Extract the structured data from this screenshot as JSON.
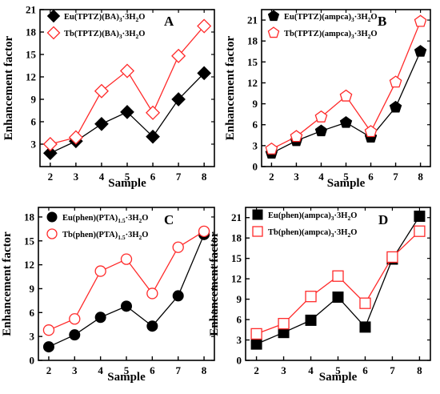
{
  "figure": {
    "shared_xlabel": "Sample",
    "shared_ylabel": "Enhancement factor"
  },
  "chart_data": [
    {
      "panel": "A",
      "type": "line",
      "xlabel": "Sample",
      "ylabel": "Enhancement factor",
      "x": [
        2,
        3,
        4,
        5,
        6,
        7,
        8
      ],
      "xlim": [
        1.6,
        8.4
      ],
      "ylim": [
        0,
        21
      ],
      "yticks": [
        3,
        6,
        9,
        12,
        15,
        18,
        21
      ],
      "legend_position": "top-left",
      "series": [
        {
          "legend_main": "Eu(TPTZ)(BA)",
          "legend_rest": [
            {
              "t": "3",
              "sub": true
            },
            {
              "t": "·3H",
              "sub": false
            },
            {
              "t": "2",
              "sub": true
            },
            {
              "t": "O",
              "sub": false
            }
          ],
          "color": "#000000",
          "marker": "diamond",
          "filled": true,
          "values": [
            1.8,
            3.4,
            5.7,
            7.3,
            4.0,
            9.0,
            12.5
          ]
        },
        {
          "legend_main": "Tb(TPTZ)(BA)",
          "legend_rest": [
            {
              "t": "3",
              "sub": true
            },
            {
              "t": "·3H",
              "sub": false
            },
            {
              "t": "2",
              "sub": true
            },
            {
              "t": "O",
              "sub": false
            }
          ],
          "color": "#ff2a2a",
          "marker": "diamond",
          "filled": false,
          "values": [
            3.0,
            3.9,
            10.1,
            12.8,
            7.2,
            14.8,
            18.8
          ]
        }
      ]
    },
    {
      "panel": "B",
      "type": "line",
      "xlabel": "Sample",
      "ylabel": "Enhancement factor",
      "x": [
        2,
        3,
        4,
        5,
        6,
        7,
        8
      ],
      "xlim": [
        1.6,
        8.4
      ],
      "ylim": [
        0,
        22.5
      ],
      "yticks": [
        0,
        3,
        6,
        9,
        12,
        15,
        18,
        21
      ],
      "legend_position": "top-left",
      "series": [
        {
          "legend_main": "Eu(TPTZ)(ampca)",
          "legend_rest": [
            {
              "t": "3",
              "sub": true
            },
            {
              "t": "·3H",
              "sub": false
            },
            {
              "t": "2",
              "sub": true
            },
            {
              "t": "O",
              "sub": false
            }
          ],
          "color": "#000000",
          "marker": "pentagon",
          "filled": true,
          "values": [
            1.9,
            3.7,
            5.1,
            6.3,
            4.2,
            8.5,
            16.5
          ]
        },
        {
          "legend_main": "Tb(TPTZ)(ampca)",
          "legend_rest": [
            {
              "t": "3",
              "sub": true
            },
            {
              "t": "·3H",
              "sub": false
            },
            {
              "t": "2",
              "sub": true
            },
            {
              "t": "O",
              "sub": false
            }
          ],
          "color": "#ff2a2a",
          "marker": "pentagon",
          "filled": false,
          "values": [
            2.5,
            4.3,
            7.1,
            10.1,
            5.0,
            12.1,
            20.8
          ]
        }
      ]
    },
    {
      "panel": "C",
      "type": "line",
      "xlabel": "Sample",
      "ylabel": "Enhancement factor",
      "x": [
        2,
        3,
        4,
        5,
        6,
        7,
        8
      ],
      "xlim": [
        1.6,
        8.4
      ],
      "ylim": [
        0,
        19.2
      ],
      "yticks": [
        0,
        3,
        6,
        9,
        12,
        15,
        18
      ],
      "legend_position": "top-left",
      "series": [
        {
          "legend_main": "Eu(phen)(PTA)",
          "legend_rest": [
            {
              "t": "1.5",
              "sub": true
            },
            {
              "t": "·3H",
              "sub": false
            },
            {
              "t": "2",
              "sub": true
            },
            {
              "t": "O",
              "sub": false
            }
          ],
          "color": "#000000",
          "marker": "circle",
          "filled": true,
          "values": [
            1.7,
            3.2,
            5.4,
            6.8,
            4.3,
            8.1,
            15.8
          ]
        },
        {
          "legend_main": "Tb(phen)(PTA)",
          "legend_rest": [
            {
              "t": "1.5",
              "sub": true
            },
            {
              "t": "·3H",
              "sub": false
            },
            {
              "t": "2",
              "sub": true
            },
            {
              "t": "O",
              "sub": false
            }
          ],
          "color": "#ff2a2a",
          "marker": "circle",
          "filled": false,
          "values": [
            3.8,
            5.2,
            11.2,
            12.7,
            8.4,
            14.2,
            16.2
          ]
        }
      ]
    },
    {
      "panel": "D",
      "type": "line",
      "xlabel": "Sample",
      "ylabel": "Enhancement factor",
      "x": [
        2,
        3,
        4,
        5,
        6,
        7,
        8
      ],
      "xlim": [
        1.6,
        8.4
      ],
      "ylim": [
        0,
        22.5
      ],
      "yticks": [
        0,
        3,
        6,
        9,
        12,
        15,
        18,
        21
      ],
      "legend_position": "top-left",
      "series": [
        {
          "legend_main": "Eu(phen)(ampca)",
          "legend_rest": [
            {
              "t": "3",
              "sub": true
            },
            {
              "t": "·3H",
              "sub": false
            },
            {
              "t": "2",
              "sub": true
            },
            {
              "t": "O",
              "sub": false
            }
          ],
          "color": "#000000",
          "marker": "square",
          "filled": true,
          "values": [
            2.4,
            4.1,
            5.9,
            9.3,
            4.9,
            14.9,
            21.2
          ]
        },
        {
          "legend_main": "Tb(phen)(ampca)",
          "legend_rest": [
            {
              "t": "3",
              "sub": true
            },
            {
              "t": "·3H",
              "sub": false
            },
            {
              "t": "2",
              "sub": true
            },
            {
              "t": "O",
              "sub": false
            }
          ],
          "color": "#ff2a2a",
          "marker": "square",
          "filled": false,
          "values": [
            3.9,
            5.4,
            9.4,
            12.4,
            8.4,
            15.2,
            19.0
          ]
        }
      ]
    }
  ]
}
